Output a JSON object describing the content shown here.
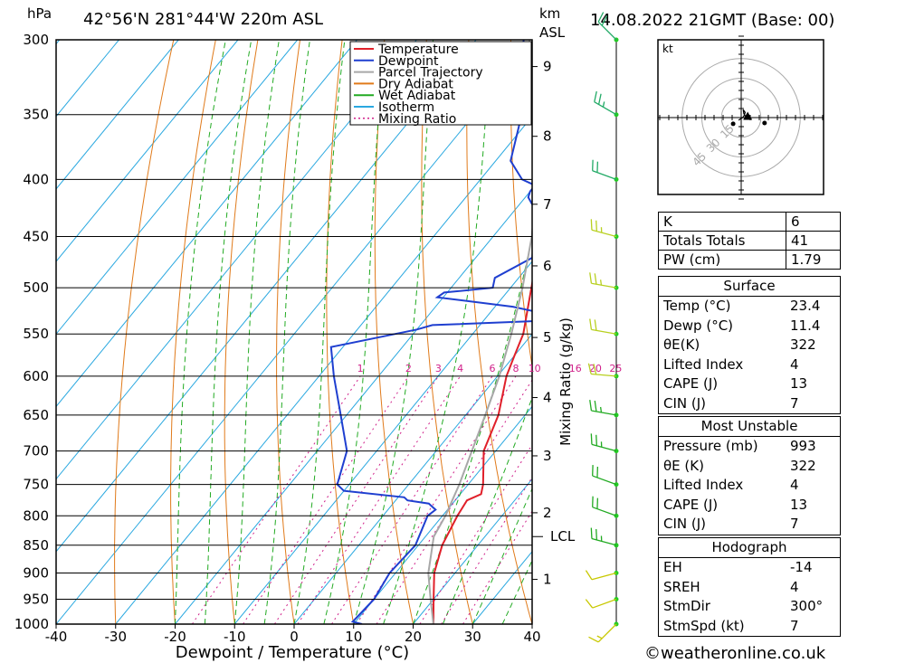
{
  "header": {
    "pressure_unit": "hPa",
    "location": "42°56'N  281°44'W  220m  ASL",
    "km_unit": "km",
    "asl_unit": "ASL",
    "datetime": "14.08.2022  21GMT  (Base: 00)"
  },
  "footer": {
    "credit": "©weatheronline.co.uk"
  },
  "colors": {
    "temperature": "#e0202a",
    "dewpoint": "#1f3fd0",
    "parcel": "#a8a8a8",
    "dry_adiabat": "#e07a1a",
    "wet_adiabat": "#22aa22",
    "isotherm": "#2aa8e0",
    "mixing_ratio": "#d0208a"
  },
  "chart_data": {
    "type": "line",
    "title": "",
    "xlabel": "Dewpoint / Temperature (°C)",
    "ylabel": "",
    "mixing_ratio_axis_label": "Mixing Ratio (g/kg)",
    "xlim": [
      -40,
      40
    ],
    "ylim": [
      1000,
      300
    ],
    "x_ticks": [
      -40,
      -30,
      -20,
      -10,
      0,
      10,
      20,
      30,
      40
    ],
    "pressure_levels": [
      300,
      350,
      400,
      450,
      500,
      550,
      600,
      650,
      700,
      750,
      800,
      850,
      900,
      950,
      1000
    ],
    "km_ticks": [
      {
        "km": "1",
        "p": 912
      },
      {
        "km": "2",
        "p": 795
      },
      {
        "km": "3",
        "p": 707
      },
      {
        "km": "4",
        "p": 627
      },
      {
        "km": "5",
        "p": 554
      },
      {
        "km": "6",
        "p": 478
      },
      {
        "km": "7",
        "p": 421
      },
      {
        "km": "8",
        "p": 366
      },
      {
        "km": "9",
        "p": 317
      }
    ],
    "lcl": {
      "label": "LCL",
      "p": 835
    },
    "mixing_ratio_labels": [
      "1",
      "2",
      "3",
      "4",
      "6",
      "8",
      "10",
      "16",
      "20",
      "25"
    ],
    "legend": [
      {
        "key": "temperature",
        "name": "Temperature"
      },
      {
        "key": "dewpoint",
        "name": "Dewpoint"
      },
      {
        "key": "parcel",
        "name": "Parcel Trajectory"
      },
      {
        "key": "dry_adiabat",
        "name": "Dry Adiabat"
      },
      {
        "key": "wet_adiabat",
        "name": "Wet Adiabat"
      },
      {
        "key": "isotherm",
        "name": "Isotherm"
      },
      {
        "key": "mixing_ratio",
        "name": "Mixing Ratio"
      }
    ],
    "series": [
      {
        "key": "temperature",
        "p": [
          1000,
          950,
          900,
          850,
          800,
          775,
          765,
          750,
          700,
          650,
          600,
          575,
          550,
          500,
          450,
          400,
          350,
          300
        ],
        "t": [
          23.4,
          20,
          16.5,
          14,
          12.5,
          12,
          13.5,
          12.5,
          8,
          5.5,
          1.5,
          0,
          -1.5,
          -6.5,
          -12,
          -19,
          -28,
          -39
        ]
      },
      {
        "key": "dewpoint",
        "p": [
          1000,
          995,
          950,
          900,
          850,
          800,
          790,
          785,
          780,
          775,
          770,
          760,
          750,
          700,
          650,
          600,
          565,
          550,
          545,
          540,
          535,
          530,
          520,
          510,
          505,
          500,
          490,
          470,
          455,
          440,
          430,
          415,
          410,
          405,
          400,
          385,
          350,
          340,
          320,
          310,
          300
        ],
        "t": [
          11.4,
          9.5,
          10,
          9,
          9.5,
          7.5,
          8,
          7,
          6,
          2,
          1,
          -10,
          -12,
          -15,
          -21,
          -27.5,
          -32,
          -23,
          -20,
          -18,
          1,
          1.5,
          -7,
          -21,
          -20.5,
          -13,
          -14,
          -10.5,
          -12.5,
          -13,
          -15.5,
          -19.5,
          -20,
          -20,
          -23,
          -27.5,
          -32,
          -32,
          -37,
          -40,
          -42
        ]
      },
      {
        "key": "parcel",
        "p": [
          1000,
          950,
          900,
          835,
          800,
          750,
          700,
          650,
          600,
          550,
          500,
          450,
          400,
          350,
          300
        ],
        "t": [
          23.4,
          19.5,
          15.5,
          11.4,
          10.5,
          8.5,
          6,
          3.3,
          0.3,
          -3.5,
          -8,
          -13.5,
          -20.5,
          -29.5,
          -41
        ]
      }
    ],
    "wind_profile": [
      {
        "p": 1000,
        "dir": 225,
        "kt": 5
      },
      {
        "p": 950,
        "dir": 250,
        "kt": 10
      },
      {
        "p": 900,
        "dir": 255,
        "kt": 10
      },
      {
        "p": 850,
        "dir": 285,
        "kt": 15
      },
      {
        "p": 800,
        "dir": 290,
        "kt": 20
      },
      {
        "p": 750,
        "dir": 290,
        "kt": 20
      },
      {
        "p": 700,
        "dir": 285,
        "kt": 15
      },
      {
        "p": 650,
        "dir": 280,
        "kt": 15
      },
      {
        "p": 600,
        "dir": 275,
        "kt": 20
      },
      {
        "p": 550,
        "dir": 280,
        "kt": 20
      },
      {
        "p": 500,
        "dir": 280,
        "kt": 15
      },
      {
        "p": 450,
        "dir": 285,
        "kt": 15
      },
      {
        "p": 400,
        "dir": 290,
        "kt": 20
      },
      {
        "p": 350,
        "dir": 300,
        "kt": 15
      },
      {
        "p": 300,
        "dir": 315,
        "kt": 20
      }
    ],
    "hodograph": {
      "unit": "kt",
      "ring_labels": [
        "15",
        "30",
        "45"
      ],
      "trace": [
        [
          -2,
          -2
        ],
        [
          1,
          0
        ],
        [
          2,
          1
        ],
        [
          3,
          4
        ],
        [
          1.5,
          6
        ],
        [
          2,
          3
        ],
        [
          4,
          0
        ]
      ],
      "storm_motion": [
        1.5,
        1
      ]
    }
  },
  "indices": {
    "top": [
      {
        "key": "K",
        "value": "6"
      },
      {
        "key": "Totals Totals",
        "value": "41"
      },
      {
        "key": "PW (cm)",
        "value": "1.79"
      }
    ],
    "surface": {
      "title": "Surface",
      "rows": [
        {
          "key": "Temp (°C)",
          "value": "23.4"
        },
        {
          "key": "Dewp (°C)",
          "value": "11.4"
        },
        {
          "key": "θE(K)",
          "value": "322"
        },
        {
          "key": "Lifted Index",
          "value": "4"
        },
        {
          "key": "CAPE (J)",
          "value": "13"
        },
        {
          "key": "CIN (J)",
          "value": "7"
        }
      ]
    },
    "most_unstable": {
      "title": "Most Unstable",
      "rows": [
        {
          "key": "Pressure (mb)",
          "value": "993"
        },
        {
          "key": "θE (K)",
          "value": "322"
        },
        {
          "key": "Lifted Index",
          "value": "4"
        },
        {
          "key": "CAPE (J)",
          "value": "13"
        },
        {
          "key": "CIN (J)",
          "value": "7"
        }
      ]
    },
    "hodograph": {
      "title": "Hodograph",
      "rows": [
        {
          "key": "EH",
          "value": "-14"
        },
        {
          "key": "SREH",
          "value": "4"
        },
        {
          "key": "StmDir",
          "value": "300°"
        },
        {
          "key": "StmSpd (kt)",
          "value": "7"
        }
      ]
    }
  }
}
